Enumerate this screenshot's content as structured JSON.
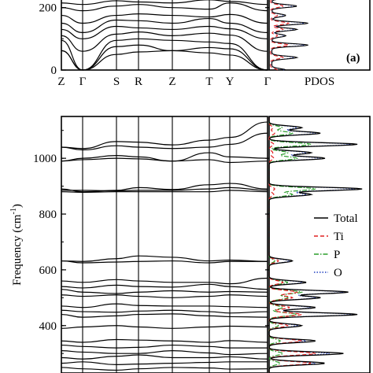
{
  "chart_data": [
    {
      "panel": "top",
      "type": "line",
      "panel_label": "(a)",
      "ylabel": "",
      "yticks": [
        0,
        200
      ],
      "ylim": [
        0,
        330
      ],
      "k_labels": [
        "Z",
        "Γ",
        "S",
        "R",
        "Z",
        "T",
        "Y",
        "Γ"
      ],
      "pdos_label": "PDOS",
      "branches_note": "phonon dispersion branches, frequencies in cm-1 at k-points Z, Γ, S, R, Z, T, Y, Γ",
      "branches": [
        [
          62,
          0,
          50,
          58,
          62,
          55,
          48,
          0
        ],
        [
          62,
          0,
          75,
          80,
          62,
          72,
          68,
          0
        ],
        [
          95,
          0,
          95,
          100,
          95,
          90,
          85,
          0
        ],
        [
          110,
          60,
          115,
          122,
          110,
          118,
          112,
          60
        ],
        [
          130,
          100,
          140,
          135,
          130,
          140,
          132,
          100
        ],
        [
          150,
          120,
          160,
          158,
          150,
          165,
          150,
          120
        ],
        [
          175,
          150,
          175,
          180,
          175,
          170,
          178,
          150
        ],
        [
          200,
          190,
          205,
          210,
          200,
          195,
          215,
          190
        ],
        [
          215,
          210,
          222,
          218,
          215,
          225,
          220,
          210
        ],
        [
          240,
          230,
          245,
          250,
          240,
          248,
          242,
          230
        ],
        [
          262,
          255,
          268,
          260,
          262,
          270,
          265,
          255
        ],
        [
          285,
          275,
          290,
          288,
          285,
          292,
          286,
          275
        ]
      ]
    },
    {
      "panel": "bottom",
      "type": "line",
      "ylabel": "Frequency (cm-1)",
      "ylabel_main": "Frequency (cm",
      "ylabel_sup": "-1",
      "ylabel_close": ")",
      "yticks": [
        400,
        600,
        800,
        1000
      ],
      "ylim": [
        230,
        1150
      ],
      "legend": {
        "position": "right-middle",
        "entries": [
          {
            "name": "Total",
            "color": "#000000",
            "dash": "solid"
          },
          {
            "name": "Ti",
            "color": "#e02020",
            "dash": "dashed"
          },
          {
            "name": "P",
            "color": "#2a9d2a",
            "dash": "dashdot"
          },
          {
            "name": "O",
            "color": "#2040c0",
            "dash": "dotted"
          }
        ]
      },
      "branches": [
        [
          1040,
          1035,
          1060,
          1058,
          1048,
          1065,
          1075,
          1130
        ],
        [
          1040,
          1030,
          1045,
          1040,
          1035,
          1040,
          1050,
          1090
        ],
        [
          990,
          1000,
          1010,
          1005,
          990,
          1020,
          1005,
          1000
        ],
        [
          990,
          995,
          1000,
          998,
          990,
          995,
          985,
          990
        ],
        [
          890,
          880,
          885,
          895,
          888,
          905,
          910,
          890
        ],
        [
          885,
          885,
          883,
          885,
          885,
          890,
          895,
          885
        ],
        [
          880,
          878,
          880,
          880,
          880,
          880,
          885,
          880
        ],
        [
          632,
          630,
          640,
          650,
          645,
          632,
          635,
          630
        ],
        [
          632,
          625,
          628,
          630,
          632,
          625,
          630,
          630
        ],
        [
          560,
          555,
          565,
          560,
          555,
          555,
          550,
          570
        ],
        [
          540,
          535,
          545,
          540,
          538,
          548,
          540,
          530
        ],
        [
          530,
          520,
          515,
          520,
          525,
          520,
          522,
          520
        ],
        [
          510,
          505,
          510,
          505,
          500,
          505,
          510,
          505
        ],
        [
          470,
          465,
          478,
          472,
          470,
          470,
          468,
          465
        ],
        [
          455,
          450,
          448,
          452,
          455,
          450,
          445,
          450
        ],
        [
          440,
          430,
          435,
          440,
          442,
          435,
          432,
          430
        ],
        [
          390,
          395,
          400,
          395,
          390,
          395,
          398,
          395
        ],
        [
          345,
          340,
          350,
          348,
          345,
          340,
          346,
          340
        ],
        [
          330,
          325,
          320,
          322,
          330,
          325,
          320,
          320
        ],
        [
          310,
          305,
          300,
          300,
          310,
          302,
          296,
          300
        ],
        [
          285,
          280,
          290,
          295,
          285,
          285,
          288,
          280
        ],
        [
          265,
          270,
          260,
          262,
          265,
          268,
          270,
          270
        ],
        [
          250,
          245,
          240,
          245,
          250,
          248,
          244,
          245
        ]
      ],
      "pdos_peaks": [
        {
          "f": 1110,
          "total": 0.35,
          "ti": 0.04,
          "p": 0.14,
          "o": 0.3
        },
        {
          "f": 1090,
          "total": 0.55,
          "ti": 0.06,
          "p": 0.25,
          "o": 0.5
        },
        {
          "f": 1050,
          "total": 0.95,
          "ti": 0.05,
          "p": 0.45,
          "o": 0.88
        },
        {
          "f": 1020,
          "total": 0.45,
          "ti": 0.04,
          "p": 0.2,
          "o": 0.4
        },
        {
          "f": 1000,
          "total": 0.6,
          "ti": 0.05,
          "p": 0.3,
          "o": 0.55
        },
        {
          "f": 890,
          "total": 1.0,
          "ti": 0.06,
          "p": 0.5,
          "o": 0.92
        },
        {
          "f": 870,
          "total": 0.45,
          "ti": 0.05,
          "p": 0.25,
          "o": 0.4
        },
        {
          "f": 632,
          "total": 0.25,
          "ti": 0.1,
          "p": 0.06,
          "o": 0.22
        },
        {
          "f": 555,
          "total": 0.4,
          "ti": 0.15,
          "p": 0.2,
          "o": 0.36
        },
        {
          "f": 520,
          "total": 0.85,
          "ti": 0.3,
          "p": 0.35,
          "o": 0.8
        },
        {
          "f": 500,
          "total": 0.55,
          "ti": 0.25,
          "p": 0.2,
          "o": 0.5
        },
        {
          "f": 465,
          "total": 0.5,
          "ti": 0.22,
          "p": 0.15,
          "o": 0.45
        },
        {
          "f": 440,
          "total": 0.95,
          "ti": 0.35,
          "p": 0.3,
          "o": 0.9
        },
        {
          "f": 400,
          "total": 0.35,
          "ti": 0.2,
          "p": 0.1,
          "o": 0.3
        },
        {
          "f": 345,
          "total": 0.5,
          "ti": 0.35,
          "p": 0.12,
          "o": 0.4
        },
        {
          "f": 300,
          "total": 0.8,
          "ti": 0.5,
          "p": 0.15,
          "o": 0.65
        },
        {
          "f": 265,
          "total": 0.6,
          "ti": 0.45,
          "p": 0.12,
          "o": 0.5
        }
      ]
    }
  ]
}
